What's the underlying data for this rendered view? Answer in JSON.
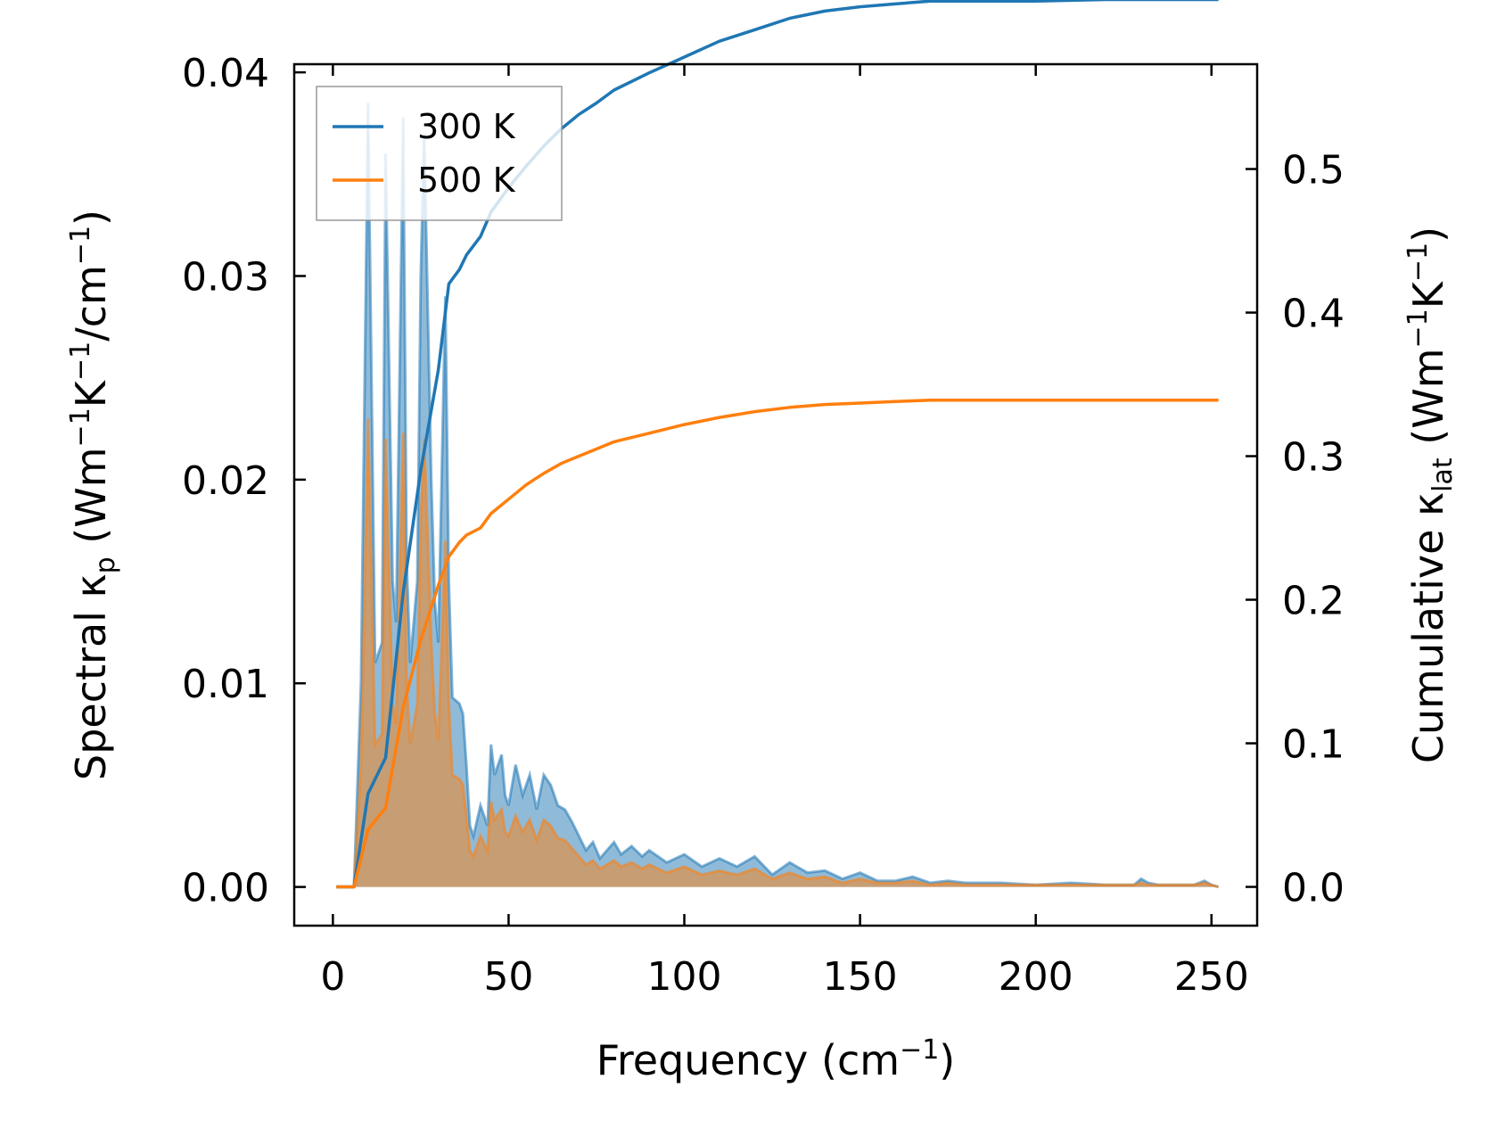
{
  "chart_data": {
    "type": "line",
    "title": "",
    "xlabel": "Frequency (cm",
    "xlabel_sup": "−1",
    "xlabel_end": ")",
    "xlim": [
      -11,
      263
    ],
    "x_ticks": [
      0,
      50,
      100,
      150,
      200,
      250
    ],
    "x_tick_labels": [
      "0",
      "50",
      "100",
      "150",
      "200",
      "250"
    ],
    "ylabel_left": {
      "prefix": "Spectral κ",
      "sub": "p",
      "mid1": " (Wm",
      "sup1": "−1",
      "mid2": "K",
      "sup2": "−1",
      "mid3": "/cm",
      "sup3": "−1",
      "end": ")"
    },
    "ylim_left": [
      -0.0019,
      0.0404
    ],
    "yticks_left": [
      0,
      0.01,
      0.02,
      0.03,
      0.04
    ],
    "ytick_labels_left": [
      "0.00",
      "0.01",
      "0.02",
      "0.03",
      "0.04"
    ],
    "ylabel_right": {
      "prefix": "Cumulative κ",
      "sub": "lat",
      "mid1": " (Wm",
      "sup1": "−1",
      "mid2": "K",
      "sup2": "−1",
      "end": ")"
    },
    "ylim_right": [
      -0.027,
      0.573
    ],
    "yticks_right": [
      0,
      0.1,
      0.2,
      0.3,
      0.4,
      0.5
    ],
    "ytick_labels_right": [
      "0.0",
      "0.1",
      "0.2",
      "0.3",
      "0.4",
      "0.5"
    ],
    "legend": {
      "position": "top-left",
      "entries": [
        "300 K",
        "500 K"
      ]
    },
    "series": [
      {
        "name": "300 K",
        "color": "#1f77b4",
        "spectral": {
          "x": [
            1,
            6,
            8,
            10,
            12,
            14,
            15,
            17,
            18,
            20,
            21,
            22,
            24,
            25,
            26,
            28,
            29,
            30,
            32,
            33,
            34,
            36,
            37,
            38,
            39,
            40,
            42,
            44,
            45,
            46,
            48,
            49,
            50,
            52,
            54,
            56,
            58,
            60,
            62,
            64,
            66,
            68,
            70,
            72,
            74,
            76,
            78,
            80,
            82,
            85,
            88,
            90,
            95,
            100,
            105,
            110,
            115,
            120,
            125,
            130,
            135,
            140,
            145,
            150,
            155,
            160,
            165,
            170,
            175,
            180,
            190,
            200,
            210,
            220,
            228,
            230,
            232,
            235,
            240,
            245,
            248,
            250,
            252
          ],
          "y": [
            0,
            0,
            0.01,
            0.0385,
            0.011,
            0.012,
            0.036,
            0.015,
            0.013,
            0.0378,
            0.016,
            0.011,
            0.015,
            0.03,
            0.037,
            0.02,
            0.014,
            0.012,
            0.029,
            0.015,
            0.0093,
            0.009,
            0.0085,
            0.006,
            0.003,
            0.0025,
            0.004,
            0.003,
            0.007,
            0.0055,
            0.0065,
            0.0045,
            0.004,
            0.006,
            0.0045,
            0.0055,
            0.0038,
            0.0055,
            0.005,
            0.004,
            0.0038,
            0.0032,
            0.0025,
            0.0018,
            0.0022,
            0.0014,
            0.0018,
            0.0022,
            0.0016,
            0.002,
            0.0015,
            0.0018,
            0.0012,
            0.0016,
            0.001,
            0.0014,
            0.001,
            0.0015,
            0.0006,
            0.0012,
            0.0007,
            0.0008,
            0.0004,
            0.0007,
            0.0003,
            0.0003,
            0.0005,
            0.0002,
            0.0003,
            0.0002,
            0.0002,
            0.0001,
            0.0002,
            0.0001,
            0.0001,
            0.0004,
            0.0002,
            0.0001,
            0.0001,
            0.0001,
            0.0003,
            0.0001,
            0
          ]
        },
        "cumulative": {
          "x": [
            1,
            6,
            10,
            15,
            20,
            25,
            30,
            33,
            36,
            38,
            42,
            45,
            50,
            55,
            60,
            65,
            70,
            75,
            80,
            90,
            100,
            110,
            120,
            130,
            140,
            150,
            160,
            170,
            180,
            200,
            220,
            240,
            252
          ],
          "y": [
            0,
            0,
            0.065,
            0.09,
            0.205,
            0.29,
            0.36,
            0.42,
            0.43,
            0.44,
            0.453,
            0.47,
            0.487,
            0.502,
            0.516,
            0.528,
            0.538,
            0.546,
            0.555,
            0.567,
            0.578,
            0.589,
            0.597,
            0.605,
            0.61,
            0.613,
            0.615,
            0.617,
            0.617,
            0.617,
            0.618,
            0.618,
            0.618
          ]
        }
      },
      {
        "name": "500 K",
        "color": "#ff7f0e",
        "spectral": {
          "x": [
            1,
            6,
            8,
            10,
            12,
            14,
            15,
            17,
            18,
            20,
            21,
            22,
            24,
            25,
            26,
            28,
            29,
            30,
            32,
            33,
            34,
            36,
            37,
            38,
            39,
            40,
            42,
            44,
            45,
            46,
            48,
            49,
            50,
            52,
            54,
            56,
            58,
            60,
            62,
            64,
            66,
            68,
            70,
            72,
            74,
            76,
            78,
            80,
            82,
            85,
            88,
            90,
            95,
            100,
            105,
            110,
            115,
            120,
            125,
            130,
            135,
            140,
            145,
            150,
            155,
            160,
            165,
            170,
            175,
            180,
            190,
            200,
            210,
            220,
            228,
            230,
            232,
            235,
            240,
            245,
            248,
            250,
            252
          ],
          "y": [
            0,
            0,
            0.006,
            0.023,
            0.007,
            0.0075,
            0.022,
            0.009,
            0.008,
            0.0223,
            0.01,
            0.007,
            0.009,
            0.018,
            0.022,
            0.012,
            0.0085,
            0.0072,
            0.017,
            0.009,
            0.0055,
            0.0053,
            0.005,
            0.0035,
            0.0018,
            0.0015,
            0.0025,
            0.0018,
            0.0042,
            0.0033,
            0.0038,
            0.0027,
            0.0025,
            0.0035,
            0.0027,
            0.0033,
            0.0023,
            0.0033,
            0.003,
            0.0024,
            0.0023,
            0.0019,
            0.0015,
            0.0011,
            0.0013,
            0.0009,
            0.0011,
            0.0013,
            0.001,
            0.0012,
            0.0009,
            0.0011,
            0.0007,
            0.001,
            0.0006,
            0.0008,
            0.0006,
            0.0009,
            0.0004,
            0.0007,
            0.0004,
            0.0005,
            0.0002,
            0.0004,
            0.0002,
            0.0002,
            0.0003,
            0.0001,
            0.0002,
            0.0001,
            0.0001,
            0.0001,
            0.0001,
            0.0001,
            0.0001,
            0.0002,
            0.0001,
            0.0001,
            0.0001,
            0.0001,
            0.0002,
            0.0001,
            0
          ]
        },
        "cumulative": {
          "x": [
            1,
            6,
            10,
            15,
            20,
            25,
            30,
            33,
            36,
            38,
            42,
            45,
            50,
            55,
            60,
            65,
            70,
            75,
            80,
            90,
            100,
            110,
            120,
            130,
            140,
            150,
            160,
            170,
            180,
            200,
            220,
            240,
            252
          ],
          "y": [
            0,
            0,
            0.04,
            0.055,
            0.125,
            0.172,
            0.21,
            0.23,
            0.24,
            0.245,
            0.25,
            0.26,
            0.27,
            0.28,
            0.288,
            0.295,
            0.3,
            0.305,
            0.31,
            0.316,
            0.322,
            0.327,
            0.331,
            0.334,
            0.336,
            0.337,
            0.338,
            0.339,
            0.339,
            0.339,
            0.339,
            0.339,
            0.339
          ]
        }
      }
    ]
  }
}
